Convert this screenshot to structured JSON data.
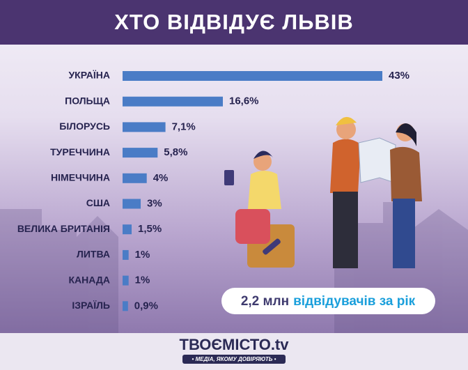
{
  "chart_data": {
    "type": "bar",
    "orientation": "horizontal",
    "title": "ХТО ВІДВІДУЄ ЛЬВІВ",
    "categories": [
      "УКРАЇНА",
      "ПОЛЬЩА",
      "БІЛОРУСЬ",
      "ТУРЕЧЧИНА",
      "НІМЕЧЧИНА",
      "США",
      "ВЕЛИКА БРИТАНІЯ",
      "ЛИТВА",
      "КАНАДА",
      "ІЗРАЇЛЬ"
    ],
    "values": [
      43,
      16.6,
      7.1,
      5.8,
      4,
      3,
      1.5,
      1,
      1,
      0.9
    ],
    "value_labels": [
      "43%",
      "16,6%",
      "7,1%",
      "5,8%",
      "4%",
      "3%",
      "1,5%",
      "1%",
      "1%",
      "0,9%"
    ],
    "color": "#4a7cc6",
    "annotation": [
      "2,2 млн",
      "відвідувачів за рік"
    ]
  },
  "footer": {
    "logo": "ТВОЄМІСТО.tv",
    "tagline": "• МЕДІА, ЯКОМУ ДОВІРЯЮТЬ •"
  }
}
